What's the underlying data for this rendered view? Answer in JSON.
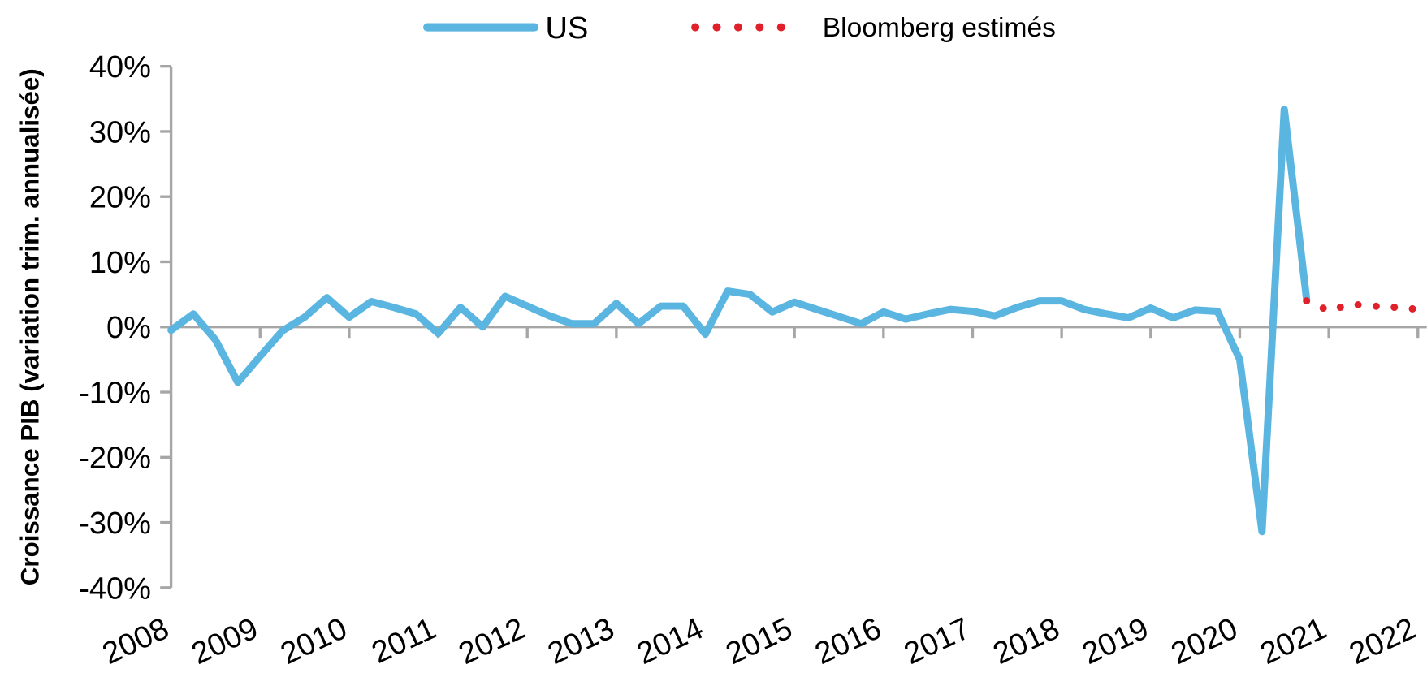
{
  "chart_data": {
    "type": "line",
    "y_label": "Croissance PIB (variation trim. annualisée)",
    "xlim": [
      2008,
      2022.1
    ],
    "xticks": [
      2008,
      2009,
      2010,
      2011,
      2012,
      2013,
      2014,
      2015,
      2016,
      2017,
      2018,
      2019,
      2020,
      2021,
      2022
    ],
    "ylim": [
      -40,
      40
    ],
    "yticks": [
      {
        "value": 40,
        "label": "40%"
      },
      {
        "value": 30,
        "label": "30%"
      },
      {
        "value": 20,
        "label": "20%"
      },
      {
        "value": 10,
        "label": "10%"
      },
      {
        "value": 0,
        "label": "0%"
      },
      {
        "value": -10,
        "label": "-10%"
      },
      {
        "value": -20,
        "label": "-20%"
      },
      {
        "value": -30,
        "label": "-30%"
      },
      {
        "value": -40,
        "label": "-40%"
      }
    ],
    "series": [
      {
        "name": "US",
        "color": "#5bb5e1",
        "style": "solid",
        "x": [
          2008,
          2008.25,
          2008.5,
          2008.75,
          2009,
          2009.25,
          2009.5,
          2009.75,
          2010,
          2010.25,
          2010.5,
          2010.75,
          2011,
          2011.25,
          2011.5,
          2011.75,
          2012,
          2012.25,
          2012.5,
          2012.75,
          2013,
          2013.25,
          2013.5,
          2013.75,
          2014,
          2014.25,
          2014.5,
          2014.75,
          2015,
          2015.25,
          2015.5,
          2015.75,
          2016,
          2016.25,
          2016.5,
          2016.75,
          2017,
          2017.25,
          2017.5,
          2017.75,
          2018,
          2018.25,
          2018.5,
          2018.75,
          2019,
          2019.25,
          2019.5,
          2019.75,
          2020,
          2020.25,
          2020.5,
          2020.75
        ],
        "values": [
          -0.5,
          2,
          -2,
          -8.5,
          -4.5,
          -0.6,
          1.5,
          4.5,
          1.5,
          3.9,
          3,
          2,
          -1,
          3,
          0,
          4.7,
          3.2,
          1.7,
          0.5,
          0.5,
          3.6,
          0.5,
          3.2,
          3.2,
          -1.1,
          5.5,
          5,
          2.3,
          3.8,
          2.7,
          1.6,
          0.5,
          2.3,
          1.2,
          2,
          2.7,
          2.4,
          1.7,
          3,
          4,
          4,
          2.7,
          2,
          1.4,
          2.9,
          1.4,
          2.6,
          2.4,
          -5,
          -31.4,
          33.4,
          4.3
        ]
      },
      {
        "name": "Bloomberg estimés",
        "color": "#e0202a",
        "style": "dotted",
        "x": [
          2020.75,
          2021,
          2021.25,
          2021.5,
          2021.75,
          2022.1
        ],
        "values": [
          4,
          2.5,
          3.5,
          3.2,
          3,
          2.6
        ]
      }
    ]
  }
}
